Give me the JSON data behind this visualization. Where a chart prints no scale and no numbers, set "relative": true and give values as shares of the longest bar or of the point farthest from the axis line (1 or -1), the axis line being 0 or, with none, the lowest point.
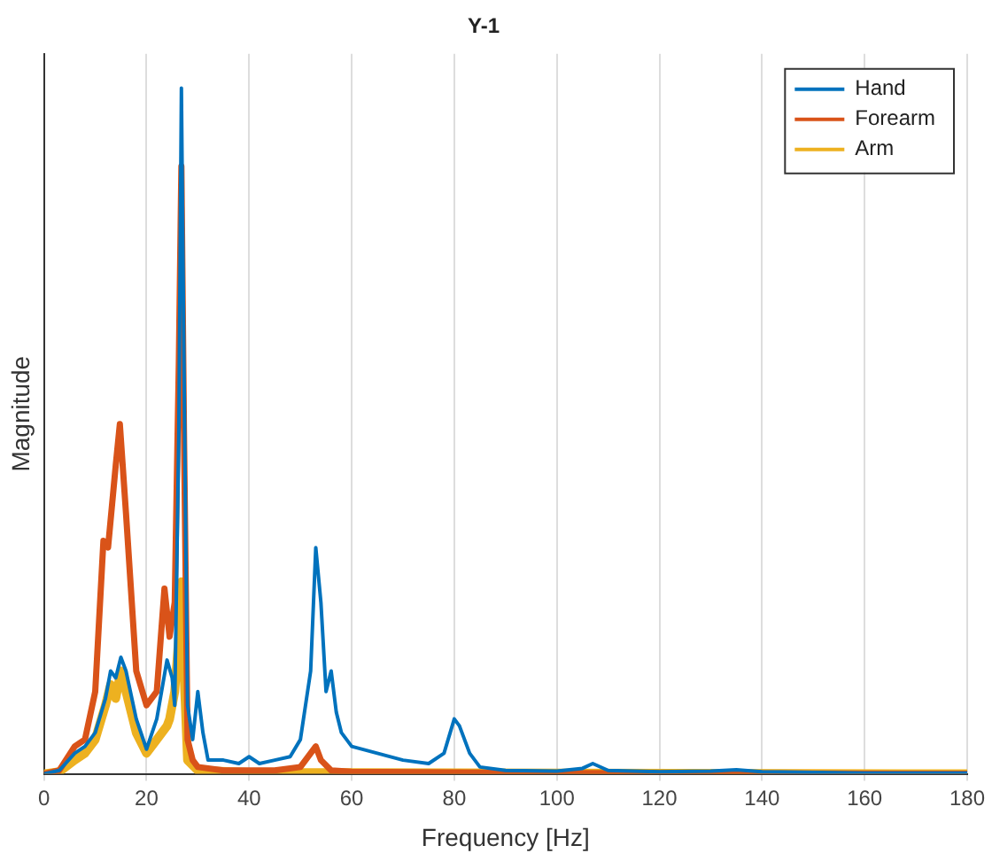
{
  "chart_data": {
    "type": "line",
    "title": "Y-1",
    "xlabel": "Frequency [Hz]",
    "ylabel": "Magnitude",
    "relative": true,
    "xlim": [
      0,
      180
    ],
    "xticks": [
      0,
      20,
      40,
      60,
      80,
      100,
      120,
      140,
      160,
      180
    ],
    "grid": "x",
    "legend": "top right",
    "marker": "none",
    "line_style": "solid",
    "series": [
      {
        "name": "Hand",
        "color": "#0072bd",
        "x": [
          0,
          3,
          6,
          8,
          10,
          12,
          13,
          14,
          15,
          16,
          18,
          20,
          22,
          24,
          25,
          25.5,
          26.3,
          26.8,
          27.3,
          28,
          29,
          30,
          31,
          32,
          35,
          38,
          40,
          42,
          45,
          48,
          50,
          52,
          53,
          54,
          55,
          56,
          57,
          58,
          60,
          65,
          70,
          75,
          78,
          80,
          81,
          83,
          85,
          90,
          100,
          105,
          107,
          110,
          120,
          130,
          135,
          140,
          150,
          160,
          180
        ],
        "values": [
          0,
          0.005,
          0.03,
          0.04,
          0.06,
          0.11,
          0.15,
          0.14,
          0.17,
          0.15,
          0.08,
          0.036,
          0.08,
          0.166,
          0.14,
          0.1,
          0.5,
          1,
          0.6,
          0.1,
          0.05,
          0.12,
          0.06,
          0.02,
          0.02,
          0.015,
          0.025,
          0.015,
          0.02,
          0.025,
          0.05,
          0.15,
          0.33,
          0.25,
          0.12,
          0.15,
          0.09,
          0.06,
          0.04,
          0.03,
          0.02,
          0.015,
          0.03,
          0.08,
          0.07,
          0.03,
          0.01,
          0.005,
          0.004,
          0.008,
          0.015,
          0.005,
          0.003,
          0.004,
          0.006,
          0.003,
          0.002,
          0.001,
          0.001
        ]
      },
      {
        "name": "Forearm",
        "color": "#d95319",
        "x": [
          0,
          3,
          6,
          8,
          10,
          11.6,
          12.5,
          14,
          14.8,
          16,
          18,
          20,
          22,
          23.5,
          24.5,
          25.5,
          26.3,
          26.8,
          27.3,
          28,
          29,
          30,
          35,
          45,
          50,
          52,
          53,
          54,
          56,
          60,
          80,
          100,
          180
        ],
        "values": [
          0,
          0.005,
          0.04,
          0.05,
          0.12,
          0.34,
          0.33,
          0.45,
          0.51,
          0.38,
          0.15,
          0.1,
          0.12,
          0.27,
          0.2,
          0.25,
          0.6,
          0.886,
          0.5,
          0.05,
          0.02,
          0.01,
          0.005,
          0.005,
          0.01,
          0.03,
          0.04,
          0.02,
          0.005,
          0.003,
          0.002,
          0.001,
          0
        ]
      },
      {
        "name": "Arm",
        "color": "#edb120",
        "x": [
          0,
          3,
          6,
          8,
          10,
          12,
          13,
          14,
          15,
          16,
          18,
          20,
          22,
          24,
          24.5,
          25.5,
          26.3,
          26.8,
          27.3,
          28,
          30,
          40,
          180
        ],
        "values": [
          0,
          0.003,
          0.02,
          0.03,
          0.05,
          0.1,
          0.13,
          0.11,
          0.15,
          0.12,
          0.06,
          0.03,
          0.05,
          0.07,
          0.08,
          0.12,
          0.2,
          0.28,
          0.15,
          0.02,
          0.005,
          0.002,
          0
        ]
      }
    ]
  }
}
